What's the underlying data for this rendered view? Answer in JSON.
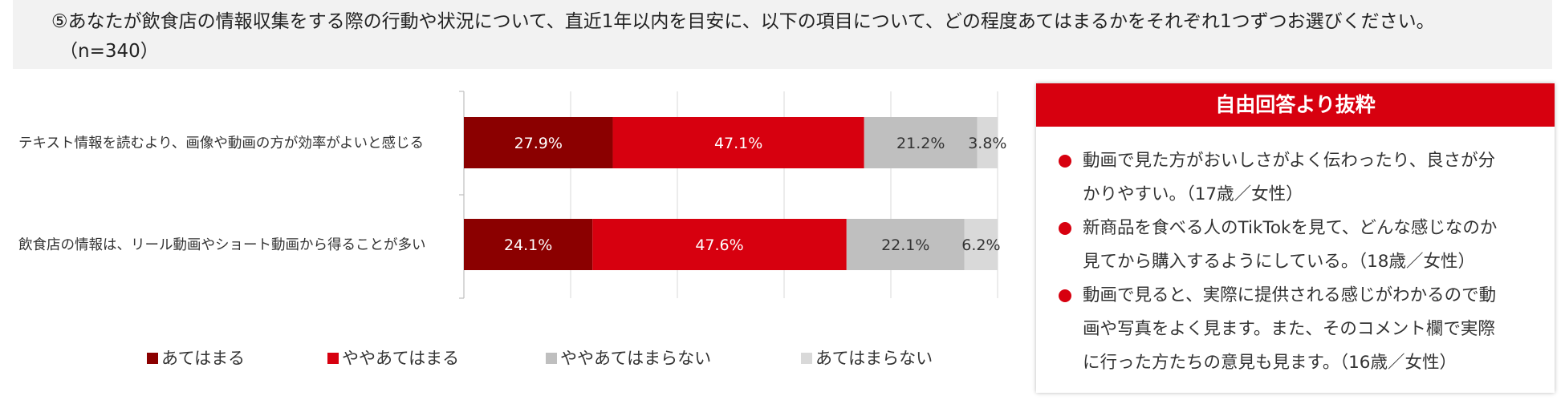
{
  "question": {
    "line1": "⑤あなたが飲食店の情報収集をする際の行動や状況について、直近1年以内を目安に、以下の項目について、どの程度あてはまるかをそれぞれ1つずつお選びください。",
    "line2": "（n=340）"
  },
  "chart_data": {
    "type": "bar",
    "orientation": "horizontal",
    "stacked": true,
    "categories": [
      "テキスト情報を読むより、画像や動画の方が効率がよいと感じる",
      "飲食店の情報は、リール動画やショート動画から得ることが多い"
    ],
    "series": [
      {
        "name": "あてはまる",
        "values": [
          27.9,
          24.1
        ],
        "color": "#8b0000",
        "label_color": "#ffffff"
      },
      {
        "name": "ややあてはまる",
        "values": [
          47.1,
          47.6
        ],
        "color": "#d7000f",
        "label_color": "#ffffff"
      },
      {
        "name": "ややあてはまらない",
        "values": [
          21.2,
          22.1
        ],
        "color": "#bfbfbf",
        "label_color": "#333333"
      },
      {
        "name": "あてはまらない",
        "values": [
          3.8,
          6.2
        ],
        "color": "#d9d9d9",
        "label_color": "#333333"
      }
    ],
    "value_suffix": "%",
    "xlim": [
      0,
      100
    ],
    "grid": true,
    "legend": "bottom"
  },
  "free_answers": {
    "title": "自由回答より抜粋",
    "items": [
      {
        "lines": [
          "動画で見た方がおいしさがよく伝わったり、良さが分",
          "かりやすい。（17歳／女性）"
        ]
      },
      {
        "lines": [
          "新商品を食べる人のTikTokを見て、どんな感じなのか",
          "見てから購入するようにしている。（18歳／女性）"
        ]
      },
      {
        "lines": [
          "動画で見ると、実際に提供される感じがわかるので動",
          "画や写真をよく見ます。また、そのコメント欄で実際",
          "に行った方たちの意見も見ます。（16歳／女性）"
        ]
      }
    ]
  }
}
